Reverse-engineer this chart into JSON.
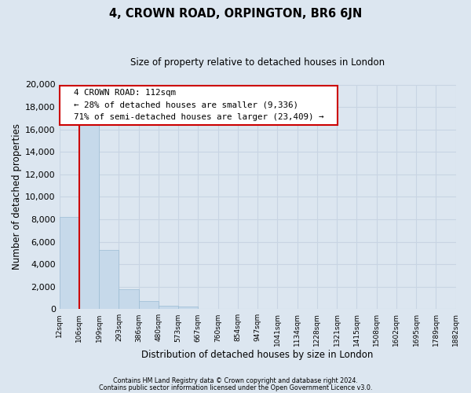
{
  "title": "4, CROWN ROAD, ORPINGTON, BR6 6JN",
  "subtitle": "Size of property relative to detached houses in London",
  "xlabel": "Distribution of detached houses by size in London",
  "ylabel": "Number of detached properties",
  "bin_labels": [
    "12sqm",
    "106sqm",
    "199sqm",
    "293sqm",
    "386sqm",
    "480sqm",
    "573sqm",
    "667sqm",
    "760sqm",
    "854sqm",
    "947sqm",
    "1041sqm",
    "1134sqm",
    "1228sqm",
    "1321sqm",
    "1415sqm",
    "1508sqm",
    "1602sqm",
    "1695sqm",
    "1789sqm",
    "1882sqm"
  ],
  "bar_heights": [
    8200,
    16600,
    5300,
    1750,
    750,
    300,
    250,
    0,
    0,
    0,
    0,
    0,
    0,
    0,
    0,
    0,
    0,
    0,
    0,
    0
  ],
  "bar_color": "#c6d9ea",
  "bar_edge_color": "#9bbcd4",
  "vline_x": 1,
  "vline_color": "#cc0000",
  "annotation_title": "4 CROWN ROAD: 112sqm",
  "annotation_line1": "← 28% of detached houses are smaller (9,336)",
  "annotation_line2": "71% of semi-detached houses are larger (23,409) →",
  "annotation_box_color": "#ffffff",
  "annotation_box_edge": "#cc0000",
  "ylim": [
    0,
    20000
  ],
  "yticks": [
    0,
    2000,
    4000,
    6000,
    8000,
    10000,
    12000,
    14000,
    16000,
    18000,
    20000
  ],
  "grid_color": "#c8d4e3",
  "background_color": "#dce6f0",
  "footnote1": "Contains HM Land Registry data © Crown copyright and database right 2024.",
  "footnote2": "Contains public sector information licensed under the Open Government Licence v3.0."
}
